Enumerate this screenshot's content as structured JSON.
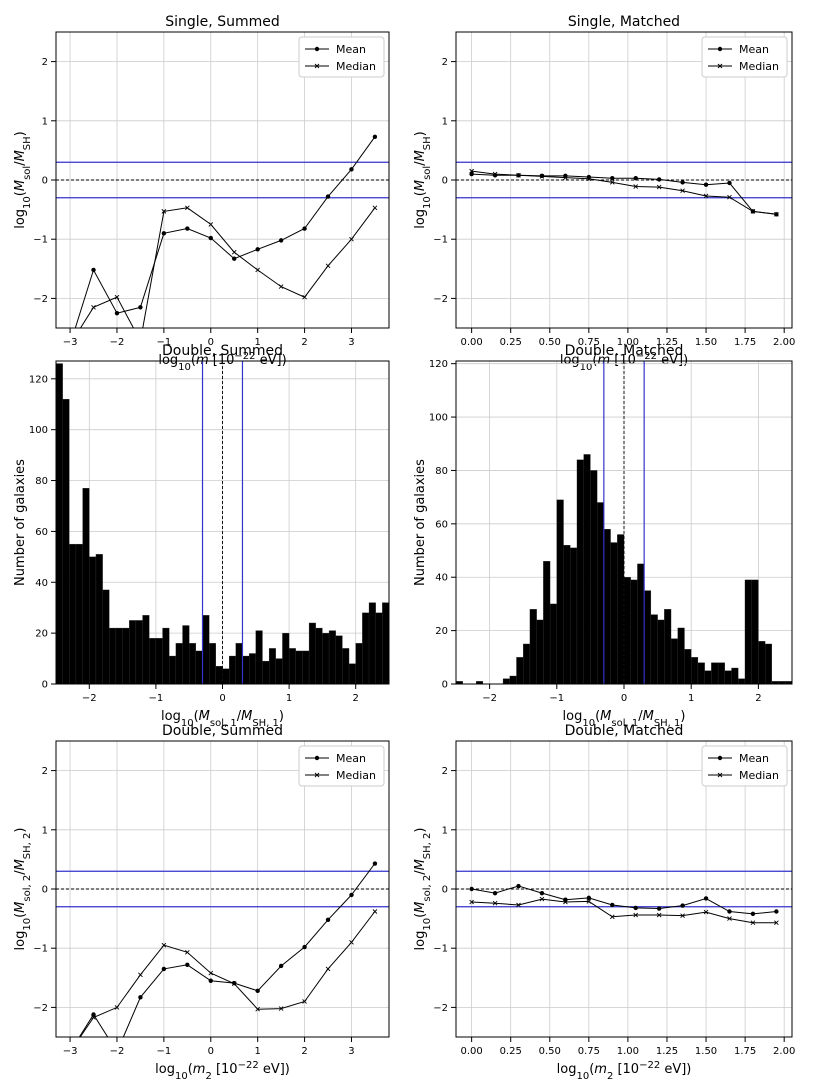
{
  "colors": {
    "ref_line": "#3333cc",
    "series": "#000000",
    "grid": "#cccccc",
    "bar": "#000000"
  },
  "chart_data": [
    {
      "id": "p1",
      "type": "line",
      "title": "Single, Summed",
      "xlabel": "log10(m [10^-22 eV])",
      "ylabel": "log10(M_sol/M_SH)",
      "xlim": [
        -3.3,
        3.8
      ],
      "ylim": [
        -2.5,
        2.5
      ],
      "xticks": [
        -3,
        -2,
        -1,
        0,
        1,
        2,
        3
      ],
      "xtick_labels": [
        "−3",
        "−2",
        "−1",
        "0",
        "1",
        "2",
        "3"
      ],
      "yticks": [
        -2,
        -1,
        0,
        1,
        2
      ],
      "ytick_labels": [
        "−2",
        "−1",
        "0",
        "1",
        "2"
      ],
      "hlines_blue": [
        0.3,
        -0.3
      ],
      "hline_dashed": 0,
      "legend": {
        "position": "top-right",
        "labels": [
          "Mean",
          "Median"
        ]
      },
      "series": [
        {
          "name": "Mean",
          "marker": "dot",
          "x": [
            -3,
            -2.5,
            -2,
            -1.5,
            -1,
            -0.5,
            0,
            0.5,
            1,
            1.5,
            2,
            2.5,
            3,
            3.5
          ],
          "y": [
            -2.78,
            -1.52,
            -2.25,
            -2.15,
            -0.9,
            -0.82,
            -0.98,
            -1.33,
            -1.17,
            -1.02,
            -0.82,
            -0.28,
            0.18,
            0.73
          ]
        },
        {
          "name": "Median",
          "marker": "x",
          "x": [
            -3,
            -2.5,
            -2,
            -1.5,
            -1,
            -0.5,
            0,
            0.5,
            1,
            1.5,
            2,
            2.5,
            3,
            3.5
          ],
          "y": [
            -2.78,
            -2.15,
            -1.98,
            -2.72,
            -0.53,
            -0.47,
            -0.75,
            -1.22,
            -1.52,
            -1.8,
            -1.98,
            -1.45,
            -1.0,
            -0.47
          ]
        }
      ]
    },
    {
      "id": "p2",
      "type": "line",
      "title": "Single, Matched",
      "xlabel": "log10(m [10^-22 eV])",
      "ylabel": "log10(M_sol/M_SH)",
      "xlim": [
        -0.1,
        2.05
      ],
      "ylim": [
        -2.5,
        2.5
      ],
      "xticks": [
        0,
        0.25,
        0.5,
        0.75,
        1.0,
        1.25,
        1.5,
        1.75,
        2.0
      ],
      "xtick_labels": [
        "0.00",
        "0.25",
        "0.50",
        "0.75",
        "1.00",
        "1.25",
        "1.50",
        "1.75",
        "2.00"
      ],
      "yticks": [
        -2,
        -1,
        0,
        1,
        2
      ],
      "ytick_labels": [
        "−2",
        "−1",
        "0",
        "1",
        "2"
      ],
      "hlines_blue": [
        0.3,
        -0.3
      ],
      "hline_dashed": 0,
      "legend": {
        "position": "top-right",
        "labels": [
          "Mean",
          "Median"
        ]
      },
      "series": [
        {
          "name": "Mean",
          "marker": "dot",
          "x": [
            0,
            0.15,
            0.3,
            0.45,
            0.6,
            0.75,
            0.9,
            1.05,
            1.2,
            1.35,
            1.5,
            1.65,
            1.8,
            1.95
          ],
          "y": [
            0.1,
            0.08,
            0.08,
            0.07,
            0.07,
            0.05,
            0.03,
            0.03,
            0.01,
            -0.04,
            -0.08,
            -0.05,
            -0.53,
            -0.58
          ]
        },
        {
          "name": "Median",
          "marker": "x",
          "x": [
            0,
            0.15,
            0.3,
            0.45,
            0.6,
            0.75,
            0.9,
            1.05,
            1.2,
            1.35,
            1.5,
            1.65,
            1.8,
            1.95
          ],
          "y": [
            0.15,
            0.1,
            0.08,
            0.06,
            0.04,
            0.02,
            -0.04,
            -0.11,
            -0.12,
            -0.18,
            -0.27,
            -0.29,
            -0.53,
            -0.58
          ]
        }
      ]
    },
    {
      "id": "p3",
      "type": "bar",
      "title": "Double, Summed",
      "xlabel": "log10(M_sol,1/M_SH,1)",
      "ylabel": "Number of galaxies",
      "xlim": [
        -2.5,
        2.5
      ],
      "ylim": [
        0,
        127
      ],
      "xticks": [
        -2,
        -1,
        0,
        1,
        2
      ],
      "xtick_labels": [
        "−2",
        "−1",
        "0",
        "1",
        "2"
      ],
      "yticks": [
        0,
        20,
        40,
        60,
        80,
        100,
        120
      ],
      "ytick_labels": [
        "0",
        "20",
        "40",
        "60",
        "80",
        "100",
        "120"
      ],
      "vlines_blue": [
        -0.3,
        0.3
      ],
      "vline_dashed": 0,
      "bin_start": -2.5,
      "bin_width": 0.1,
      "values": [
        126,
        112,
        55,
        55,
        77,
        50,
        51,
        37,
        22,
        22,
        22,
        25,
        25,
        27,
        18,
        18,
        22,
        11,
        16,
        23,
        16,
        13,
        27,
        16,
        7,
        6,
        11,
        16,
        11,
        12,
        21,
        9,
        14,
        10,
        20,
        14,
        13,
        13,
        24,
        22,
        20,
        21,
        19,
        14,
        8,
        16,
        28,
        32,
        28,
        32
      ]
    },
    {
      "id": "p4",
      "type": "bar",
      "title": "Double, Matched",
      "xlabel": "log10(M_sol,1/M_SH,1)",
      "ylabel": "Number of galaxies",
      "xlim": [
        -2.5,
        2.5
      ],
      "ylim": [
        0,
        121
      ],
      "xticks": [
        -2,
        -1,
        0,
        1,
        2
      ],
      "xtick_labels": [
        "−2",
        "−1",
        "0",
        "1",
        "2"
      ],
      "yticks": [
        0,
        20,
        40,
        60,
        80,
        100,
        120
      ],
      "ytick_labels": [
        "0",
        "20",
        "40",
        "60",
        "80",
        "100",
        "120"
      ],
      "vlines_blue": [
        -0.3,
        0.3
      ],
      "vline_dashed": 0,
      "bin_start": -2.5,
      "bin_width": 0.1,
      "values": [
        1,
        0,
        0,
        1,
        0,
        0,
        0,
        2,
        3,
        10,
        15,
        28,
        24,
        46,
        30,
        69,
        52,
        51,
        84,
        86,
        80,
        68,
        58,
        53,
        56,
        40,
        39,
        45,
        35,
        26,
        24,
        28,
        17,
        21,
        13,
        10,
        8,
        5,
        8,
        8,
        5,
        6,
        2,
        39,
        39,
        16,
        15,
        1,
        1,
        1
      ]
    },
    {
      "id": "p5",
      "type": "line",
      "title": "Double, Summed",
      "xlabel": "log10(m2 [10^-22 eV])",
      "ylabel": "log10(M_sol,2/M_SH,2)",
      "xlim": [
        -3.3,
        3.8
      ],
      "ylim": [
        -2.5,
        2.5
      ],
      "xticks": [
        -3,
        -2,
        -1,
        0,
        1,
        2,
        3
      ],
      "xtick_labels": [
        "−3",
        "−2",
        "−1",
        "0",
        "1",
        "2",
        "3"
      ],
      "yticks": [
        -2,
        -1,
        0,
        1,
        2
      ],
      "ytick_labels": [
        "−2",
        "−1",
        "0",
        "1",
        "2"
      ],
      "hlines_blue": [
        0.3,
        -0.3
      ],
      "hline_dashed": 0,
      "legend": {
        "position": "top-right",
        "labels": [
          "Mean",
          "Median"
        ]
      },
      "series": [
        {
          "name": "Mean",
          "marker": "dot",
          "x": [
            -3,
            -2.5,
            -2,
            -1.5,
            -1,
            -0.5,
            0,
            0.5,
            1,
            1.5,
            2,
            2.5,
            3,
            3.5
          ],
          "y": [
            -2.75,
            -2.12,
            -2.75,
            -1.83,
            -1.35,
            -1.28,
            -1.55,
            -1.59,
            -1.72,
            -1.3,
            -0.98,
            -0.52,
            -0.1,
            0.43
          ]
        },
        {
          "name": "Median",
          "marker": "x",
          "x": [
            -3,
            -2.5,
            -2,
            -1.5,
            -1,
            -0.5,
            0,
            0.5,
            1,
            1.5,
            2,
            2.5,
            3,
            3.5
          ],
          "y": [
            -2.75,
            -2.17,
            -2.0,
            -1.45,
            -0.95,
            -1.07,
            -1.42,
            -1.6,
            -2.03,
            -2.02,
            -1.9,
            -1.35,
            -0.9,
            -0.38
          ]
        }
      ]
    },
    {
      "id": "p6",
      "type": "line",
      "title": "Double, Matched",
      "xlabel": "log10(m2 [10^-22 eV])",
      "ylabel": "log10(M_sol,2/M_SH,2)",
      "xlim": [
        -0.1,
        2.05
      ],
      "ylim": [
        -2.5,
        2.5
      ],
      "xticks": [
        0,
        0.25,
        0.5,
        0.75,
        1.0,
        1.25,
        1.5,
        1.75,
        2.0
      ],
      "xtick_labels": [
        "0.00",
        "0.25",
        "0.50",
        "0.75",
        "1.00",
        "1.25",
        "1.50",
        "1.75",
        "2.00"
      ],
      "yticks": [
        -2,
        -1,
        0,
        1,
        2
      ],
      "ytick_labels": [
        "−2",
        "−1",
        "0",
        "1",
        "2"
      ],
      "hlines_blue": [
        0.3,
        -0.3
      ],
      "hline_dashed": 0,
      "legend": {
        "position": "top-right",
        "labels": [
          "Mean",
          "Median"
        ]
      },
      "series": [
        {
          "name": "Mean",
          "marker": "dot",
          "x": [
            0,
            0.15,
            0.3,
            0.45,
            0.6,
            0.75,
            0.9,
            1.05,
            1.2,
            1.35,
            1.5,
            1.65,
            1.8,
            1.95
          ],
          "y": [
            0.0,
            -0.07,
            0.05,
            -0.07,
            -0.18,
            -0.15,
            -0.27,
            -0.32,
            -0.33,
            -0.28,
            -0.16,
            -0.38,
            -0.42,
            -0.38
          ]
        },
        {
          "name": "Median",
          "marker": "x",
          "x": [
            0,
            0.15,
            0.3,
            0.45,
            0.6,
            0.75,
            0.9,
            1.05,
            1.2,
            1.35,
            1.5,
            1.65,
            1.8,
            1.95
          ],
          "y": [
            -0.22,
            -0.24,
            -0.27,
            -0.17,
            -0.22,
            -0.21,
            -0.47,
            -0.44,
            -0.44,
            -0.45,
            -0.39,
            -0.5,
            -0.57,
            -0.57
          ]
        }
      ]
    }
  ]
}
